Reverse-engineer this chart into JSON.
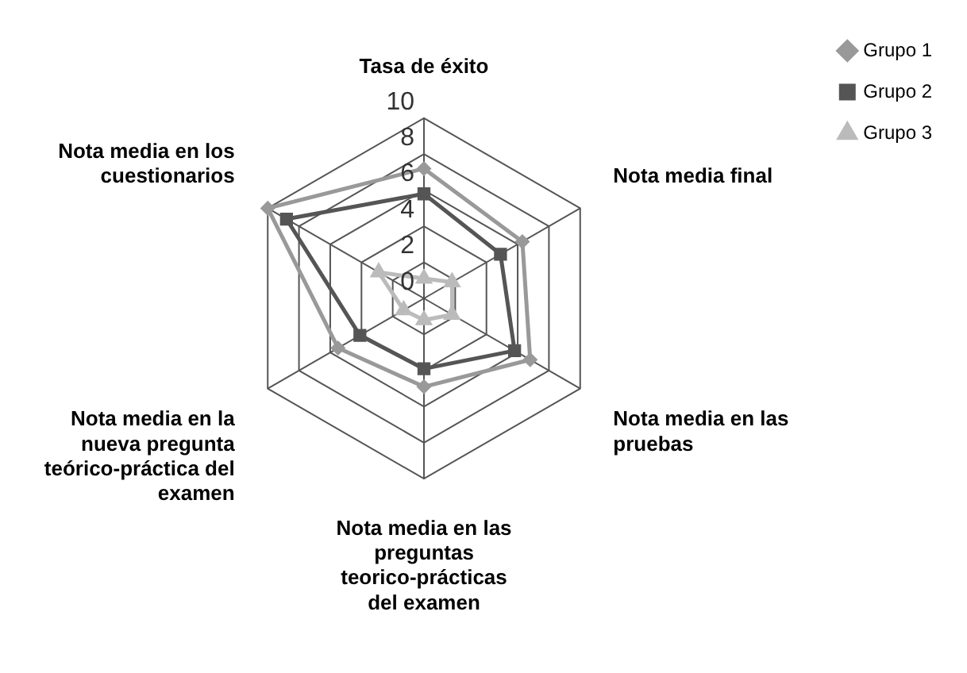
{
  "chart_data": {
    "type": "radar",
    "categories": [
      "Tasa de éxito",
      "Nota media final",
      "Nota media en las pruebas",
      "Nota media en las preguntas teorico-prácticas del examen",
      "Nota media en la nueva pregunta teórico-práctica del examen",
      "Nota media en los cuestionarios"
    ],
    "series": [
      {
        "name": "Grupo 1",
        "color": "#999999",
        "marker": "diamond",
        "values": [
          7.2,
          6.3,
          6.8,
          4.9,
          5.5,
          10
        ]
      },
      {
        "name": "Grupo 2",
        "color": "#555555",
        "marker": "square",
        "values": [
          5.8,
          4.9,
          5.8,
          3.9,
          4.1,
          8.8
        ]
      },
      {
        "name": "Grupo 3",
        "color": "#bbbbbb",
        "marker": "triangle",
        "values": [
          1.1,
          1.8,
          1.8,
          1.2,
          1.3,
          2.9
        ]
      }
    ],
    "ylim": [
      0,
      10
    ],
    "yticks": [
      0,
      2,
      4,
      6,
      8,
      10
    ],
    "grid": true,
    "legend": "top right"
  }
}
